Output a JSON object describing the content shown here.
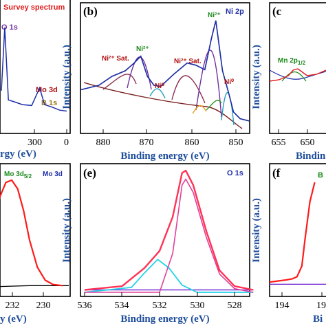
{
  "colors": {
    "raw": "#000000",
    "envelope": "#1d2ea8",
    "background": "#7a1f1f",
    "ni_peaks": "#7030a0",
    "ni_sat": "#8b2f52",
    "ni0": "#20a0c0",
    "mo_fit": "#ff1a1a",
    "o_main": "#ff3355",
    "o_c1": "#e0409a",
    "o_c2": "#22d3e6",
    "o_bg": "#7a32d4",
    "green_label": "#1b8a1b",
    "red_label": "#b01010",
    "purple_label": "#7030a0",
    "axis_blue": "#1f4e9c"
  },
  "chart_data": [
    {
      "panel": "a",
      "type": "line",
      "label": "Survey spectrum",
      "xlabel": "Binding energy (eV)",
      "xlim": [
        0,
        1200
      ],
      "reversed": true,
      "visible_ticks": [
        "300",
        "0"
      ],
      "annotations": [
        "O 1s",
        "Mo 3d",
        "B 1s"
      ],
      "x": [
        560,
        531,
        500,
        450,
        380,
        300,
        232,
        190,
        120,
        60,
        0
      ],
      "y": [
        0.32,
        1.0,
        0.22,
        0.2,
        0.17,
        0.16,
        0.35,
        0.17,
        0.14,
        0.11,
        0.1
      ]
    },
    {
      "panel": "b",
      "type": "line",
      "label": "Ni 2p",
      "xlabel": "Binding energy (eV)",
      "ylabel": "Intensity (a.u.)",
      "xlim": [
        886,
        848
      ],
      "ylim": [
        0,
        1
      ],
      "ticks": [
        880,
        870,
        860,
        850
      ],
      "annotations": [
        "Ni²⁺ Sat.",
        "Ni²⁺",
        "Ni⁰",
        "Ni²⁺ Sat.",
        "Ni²⁺",
        "Ni⁰"
      ],
      "x": [
        886,
        882,
        879,
        876,
        874,
        872.5,
        871,
        869.5,
        868,
        865,
        862,
        860,
        858,
        856.5,
        855.5,
        854,
        852.6,
        851.5,
        850,
        848
      ],
      "y": [
        0.38,
        0.42,
        0.5,
        0.55,
        0.62,
        0.68,
        0.5,
        0.42,
        0.41,
        0.52,
        0.62,
        0.6,
        0.56,
        0.84,
        1.0,
        0.55,
        0.35,
        0.18,
        0.12,
        0.1
      ]
    },
    {
      "panel": "c",
      "type": "line",
      "label": "Mn 2p",
      "xlabel": "Binding energy (eV)",
      "ylabel": "Intensity (a.u.)",
      "xlim": [
        658,
        640
      ],
      "ticks": [
        655,
        650
      ],
      "annotations": [
        "Mn 2p1/2"
      ],
      "x": [
        658,
        656,
        654,
        653,
        652,
        651,
        650,
        648,
        646,
        644
      ],
      "y": [
        0.42,
        0.44,
        0.5,
        0.58,
        0.6,
        0.55,
        0.5,
        0.52,
        0.58,
        0.62
      ]
    },
    {
      "panel": "d",
      "type": "line",
      "label": "Mo 3d",
      "xlabel": "Binding energy (eV)",
      "ylabel": "Intensity (a.u.)",
      "xlim": [
        234,
        229.5
      ],
      "ticks": [
        232,
        230
      ],
      "annotations": [
        "Mo 3d5/2"
      ],
      "x": [
        234,
        233.5,
        233,
        232.7,
        232.4,
        232.1,
        231.8,
        231.5,
        231.1,
        230.7,
        230.3,
        229.8
      ],
      "y": [
        0.15,
        0.45,
        0.85,
        0.98,
        1.0,
        0.92,
        0.72,
        0.45,
        0.2,
        0.08,
        0.04,
        0.03
      ]
    },
    {
      "panel": "e",
      "type": "line",
      "label": "O 1s",
      "xlabel": "Binding energy (eV)",
      "ylabel": "Intensity (a.u.)",
      "xlim": [
        536,
        527
      ],
      "ylim": [
        0,
        1
      ],
      "ticks": [
        536,
        534,
        532,
        530,
        528
      ],
      "series": [
        {
          "values": [
            [
              536,
              0.02
            ],
            [
              534,
              0.05
            ],
            [
              532.8,
              0.2
            ],
            [
              532,
              0.34
            ],
            [
              531.3,
              0.62
            ],
            [
              530.8,
              0.98
            ],
            [
              530.6,
              1.0
            ],
            [
              530.2,
              0.88
            ],
            [
              529.5,
              0.5
            ],
            [
              528.8,
              0.18
            ],
            [
              528,
              0.05
            ],
            [
              527,
              0.02
            ]
          ]
        },
        {
          "values": [
            [
              536,
              0.0
            ],
            [
              532,
              0.0
            ],
            [
              531.3,
              0.32
            ],
            [
              530.8,
              0.88
            ],
            [
              530.6,
              0.93
            ],
            [
              530.2,
              0.82
            ],
            [
              529.5,
              0.45
            ],
            [
              528.8,
              0.15
            ],
            [
              528,
              0.03
            ],
            [
              527,
              0.0
            ]
          ]
        },
        {
          "values": [
            [
              536,
              0.0
            ],
            [
              533.5,
              0.04
            ],
            [
              532.8,
              0.16
            ],
            [
              532.1,
              0.27
            ],
            [
              531.5,
              0.2
            ],
            [
              530.8,
              0.06
            ],
            [
              530,
              0.0
            ],
            [
              527,
              0.0
            ]
          ]
        },
        {
          "values": [
            [
              536,
              0.02
            ],
            [
              527,
              0.02
            ]
          ]
        }
      ]
    },
    {
      "panel": "f",
      "type": "line",
      "label": "B 1s",
      "xlabel": "Binding energy (eV)",
      "ylabel": "Intensity (a.u.)",
      "xlim": [
        195,
        191
      ],
      "ticks": [
        194
      ],
      "visible_partial_tick": "19",
      "x": [
        195,
        194.5,
        194,
        193.6,
        193.3,
        193,
        192.8,
        192.5,
        192.2
      ],
      "y": [
        0.05,
        0.06,
        0.07,
        0.08,
        0.1,
        0.2,
        0.45,
        0.8,
        0.98
      ]
    }
  ],
  "texts": {
    "panel_a": {
      "legend": "Survey spectrum",
      "o1s": "O 1s",
      "mo3d": "Mo 3d",
      "b1s": "B 1s",
      "tick_300": "300",
      "tick_0": "0",
      "xtitle_tail": "rgy (eV)"
    },
    "panel_b": {
      "letter": "(b)",
      "name": "Ni 2p",
      "ytitle": "Intensity (a.u.)",
      "xtitle": "Binding energy (eV)",
      "sat1": "Ni²⁺ Sat.",
      "ni2a": "Ni²⁺",
      "ni0a": "Ni⁰",
      "sat2": "Ni²⁺ Sat.",
      "ni2b": "Ni²⁺",
      "ni0b": "Ni⁰",
      "t880": "880",
      "t870": "870",
      "t860": "860",
      "t850": "850"
    },
    "panel_c": {
      "letter": "(c",
      "ytitle": "Intensity (a.u.)",
      "mn": "Mn 2p",
      "mn_sub": "1/2",
      "t655": "655",
      "t650": "650",
      "xtitle": "Bindin"
    },
    "panel_d": {
      "name": "Mo 3d",
      "mo": "Mo 3d",
      "mo_sub": "5/2",
      "t232": "232",
      "t230": "230",
      "xtitle_tail": "y (eV)"
    },
    "panel_e": {
      "letter": "(e)",
      "name": "O 1s",
      "ytitle": "Intensity (a.u.)",
      "xtitle": "Binding energy (eV)",
      "t536": "536",
      "t534": "534",
      "t532": "532",
      "t530": "530",
      "t528": "528"
    },
    "panel_f": {
      "letter": "(f",
      "ytitle": "Intensity (a.u.)",
      "label_b": "B",
      "t194": "194",
      "t19": "19",
      "xtitle": "Bi"
    }
  }
}
